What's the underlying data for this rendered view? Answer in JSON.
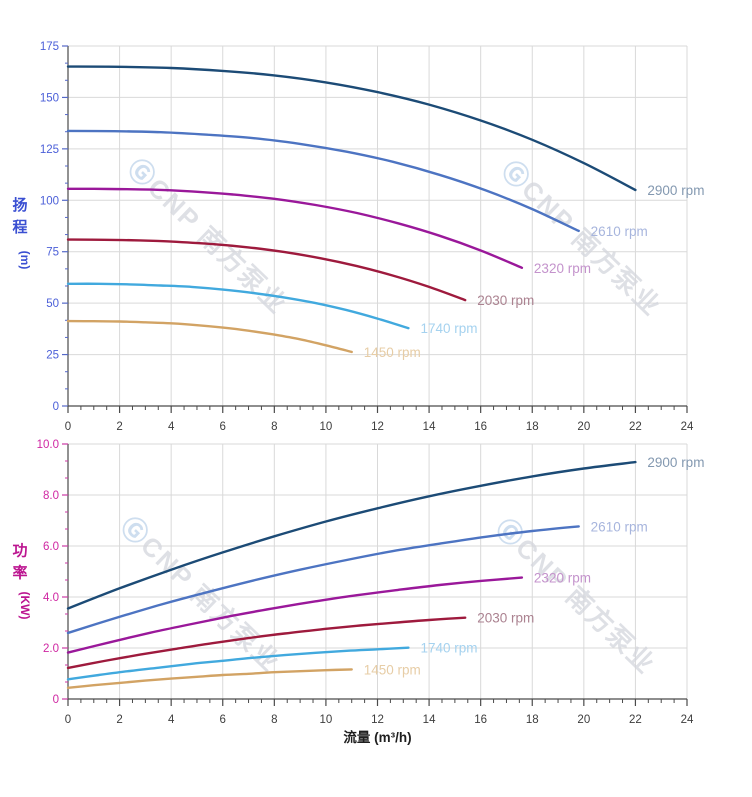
{
  "page": {
    "background": "#ffffff"
  },
  "x_axis": {
    "title": "流量 (m³/h)",
    "title_color": "#1f1f1f",
    "tick_label_color": "#3d3d3d",
    "major_ticks": [
      0,
      2,
      4,
      6,
      8,
      10,
      12,
      14,
      16,
      18,
      20,
      22,
      24
    ],
    "tick_labels": [
      "0",
      "2",
      "4",
      "6",
      "8",
      "10",
      "12",
      "14",
      "16",
      "18",
      "20",
      "22",
      "24"
    ],
    "minor_per_major": 3,
    "range": [
      0,
      24
    ]
  },
  "watermark": {
    "logo_glyph": "Ⓖ",
    "text": "CNP 南方泵业",
    "logo_color": "#bed3ea",
    "text_color": "#d4d6dd"
  },
  "style_colors": {
    "grid": "#d9d9d9",
    "axis": "#4a4a4a"
  },
  "chart_data": [
    {
      "id": "head",
      "type": "line",
      "ylabel": "扬程",
      "ylabel_unit": "(m)",
      "ylabel_color": "#3a4fd2",
      "y_tick_label_color": "#4b5fd8",
      "y_tick_color": "#5568c8",
      "ylim": [
        0,
        175
      ],
      "y_major_ticks": [
        0,
        25,
        50,
        75,
        100,
        125,
        150,
        175
      ],
      "y_tick_labels": [
        "0",
        "25",
        "50",
        "75",
        "100",
        "125",
        "150",
        "175"
      ],
      "y_minor_per_major": 2,
      "grid": true,
      "legend_position": "end-of-curve",
      "series": [
        {
          "rpm": "2900",
          "label": "2900 rpm",
          "color": "#1c4b76",
          "label_color": "#8398b0",
          "x": [
            0,
            2,
            4,
            6,
            8,
            10,
            12,
            14,
            16,
            18,
            20,
            22
          ],
          "y": [
            165,
            164.9,
            164.3,
            162.9,
            160.7,
            157.3,
            152.6,
            146.5,
            138.8,
            129.4,
            118.1,
            105
          ]
        },
        {
          "rpm": "2610",
          "label": "2610 rpm",
          "color": "#4d74c2",
          "label_color": "#a7b5dd",
          "x": [
            0,
            1.8,
            3.6,
            5.4,
            7.2,
            9,
            10.8,
            12.6,
            14.4,
            16.2,
            18,
            19.8
          ],
          "y": [
            133.7,
            133.6,
            133.1,
            131.9,
            130.2,
            127.4,
            123.6,
            118.7,
            112.4,
            104.8,
            95.7,
            85.1
          ]
        },
        {
          "rpm": "2320",
          "label": "2320 rpm",
          "color": "#9a189a",
          "label_color": "#c493cc",
          "x": [
            0,
            1.6,
            3.2,
            4.8,
            6.4,
            8,
            9.6,
            11.2,
            12.8,
            14.4,
            16,
            17.6
          ],
          "y": [
            105.6,
            105.5,
            105.2,
            104.3,
            102.8,
            100.7,
            97.7,
            93.8,
            88.8,
            82.8,
            75.6,
            67.2
          ]
        },
        {
          "rpm": "2030",
          "label": "2030 rpm",
          "color": "#9e1a3d",
          "label_color": "#ab8290",
          "x": [
            0,
            1.4,
            2.8,
            4.2,
            5.6,
            7,
            8.4,
            9.8,
            11.2,
            12.6,
            14,
            15.4
          ],
          "y": [
            80.9,
            80.8,
            80.5,
            79.8,
            78.7,
            77.1,
            74.8,
            71.8,
            68,
            63.4,
            57.9,
            51.5
          ]
        },
        {
          "rpm": "1740",
          "label": "1740 rpm",
          "color": "#41a9de",
          "label_color": "#a5d2ef",
          "x": [
            0,
            1.2,
            2.4,
            3.6,
            4.8,
            6,
            7.2,
            8.4,
            9.6,
            10.8,
            12,
            13.2
          ],
          "y": [
            59.4,
            59.4,
            59.1,
            58.6,
            57.9,
            56.6,
            54.9,
            52.7,
            50,
            46.6,
            42.5,
            37.8
          ]
        },
        {
          "rpm": "1450",
          "label": "1450 rpm",
          "color": "#d2a364",
          "label_color": "#e7cda6",
          "x": [
            0,
            1,
            2,
            3,
            4,
            5,
            6,
            7,
            8,
            9,
            10,
            11
          ],
          "y": [
            41.3,
            41.2,
            41.1,
            40.7,
            40.2,
            39.3,
            38.1,
            36.6,
            34.7,
            32.4,
            29.5,
            26.3
          ]
        }
      ]
    },
    {
      "id": "power",
      "type": "line",
      "ylabel": "功率",
      "ylabel_unit": "(KW)",
      "ylabel_color": "#bc1590",
      "y_tick_label_color": "#cf27a2",
      "y_tick_color": "#cc3aa5",
      "ylim": [
        0,
        10
      ],
      "y_major_ticks": [
        0,
        2,
        4,
        6,
        8,
        10
      ],
      "y_tick_labels": [
        "0",
        "2.0",
        "4.0",
        "6.0",
        "8.0",
        "10.0"
      ],
      "y_minor_per_major": 2,
      "grid": true,
      "legend_position": "end-of-curve",
      "xlabel": "流量 (m³/h)",
      "series": [
        {
          "rpm": "2900",
          "label": "2900 rpm",
          "color": "#1c4b76",
          "label_color": "#8398b0",
          "x": [
            0,
            2,
            4,
            6,
            8,
            10,
            12,
            14,
            16,
            18,
            20,
            22
          ],
          "y": [
            3.55,
            4.34,
            5.07,
            5.75,
            6.38,
            6.96,
            7.48,
            7.95,
            8.36,
            8.73,
            9.04,
            9.29
          ]
        },
        {
          "rpm": "2610",
          "label": "2610 rpm",
          "color": "#4d74c2",
          "label_color": "#a7b5dd",
          "x": [
            0,
            1.8,
            3.6,
            5.4,
            7.2,
            9,
            10.8,
            12.6,
            14.4,
            16.2,
            18,
            19.8
          ],
          "y": [
            2.59,
            3.16,
            3.7,
            4.19,
            4.65,
            5.07,
            5.45,
            5.8,
            6.09,
            6.36,
            6.59,
            6.77
          ]
        },
        {
          "rpm": "2320",
          "label": "2320 rpm",
          "color": "#9a189a",
          "label_color": "#c493cc",
          "x": [
            0,
            1.6,
            3.2,
            4.8,
            6.4,
            8,
            9.6,
            11.2,
            12.8,
            14.4,
            16,
            17.6
          ],
          "y": [
            1.82,
            2.22,
            2.6,
            2.94,
            3.27,
            3.56,
            3.83,
            4.07,
            4.28,
            4.47,
            4.63,
            4.76
          ]
        },
        {
          "rpm": "2030",
          "label": "2030 rpm",
          "color": "#9e1a3d",
          "label_color": "#ab8290",
          "x": [
            0,
            1.4,
            2.8,
            4.2,
            5.6,
            7,
            8.4,
            9.8,
            11.2,
            12.6,
            14,
            15.4
          ],
          "y": [
            1.22,
            1.49,
            1.74,
            1.97,
            2.19,
            2.39,
            2.57,
            2.73,
            2.87,
            2.99,
            3.1,
            3.19
          ]
        },
        {
          "rpm": "1740",
          "label": "1740 rpm",
          "color": "#41a9de",
          "label_color": "#a5d2ef",
          "x": [
            0,
            1.2,
            2.4,
            3.6,
            4.8,
            6,
            7.2,
            8.4,
            9.6,
            10.8,
            12,
            13.2
          ],
          "y": [
            0.77,
            0.94,
            1.1,
            1.24,
            1.38,
            1.5,
            1.62,
            1.72,
            1.81,
            1.89,
            1.95,
            2.01
          ]
        },
        {
          "rpm": "1450",
          "label": "1450 rpm",
          "color": "#d2a364",
          "label_color": "#e7cda6",
          "x": [
            0,
            1,
            2,
            3,
            4,
            5,
            6,
            7,
            8,
            9,
            10,
            11
          ],
          "y": [
            0.44,
            0.54,
            0.63,
            0.72,
            0.8,
            0.87,
            0.94,
            0.99,
            1.05,
            1.09,
            1.13,
            1.16
          ]
        }
      ]
    }
  ]
}
